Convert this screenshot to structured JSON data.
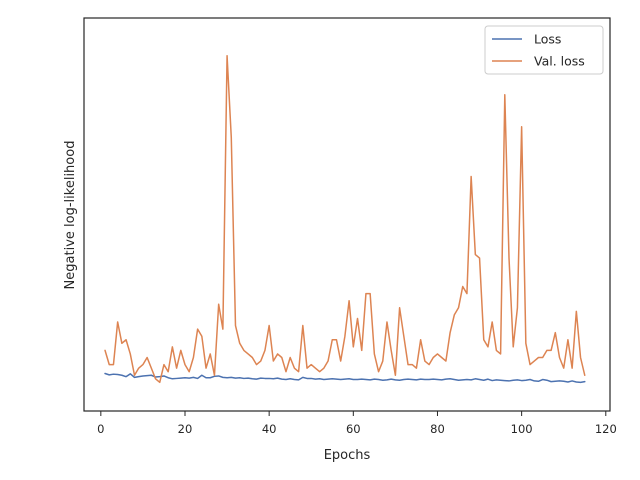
{
  "chart_data": {
    "type": "line",
    "title": "",
    "xlabel": "Epochs",
    "ylabel": "Negative log-likelihood",
    "xlim": [
      -4,
      121
    ],
    "ylim": [
      0,
      100
    ],
    "x_ticks": [
      0,
      20,
      40,
      60,
      80,
      100,
      120
    ],
    "x_tick_labels": [
      "0",
      "20",
      "40",
      "60",
      "80",
      "100",
      "120"
    ],
    "y_tick_labels_visible": false,
    "grid": false,
    "legend": "top-right",
    "series": [
      {
        "name": "Loss",
        "color": "#4c72b0",
        "x": [
          1,
          2,
          3,
          4,
          5,
          6,
          7,
          8,
          9,
          10,
          11,
          12,
          13,
          14,
          15,
          16,
          17,
          18,
          19,
          20,
          21,
          22,
          23,
          24,
          25,
          26,
          27,
          28,
          29,
          30,
          31,
          32,
          33,
          34,
          35,
          36,
          37,
          38,
          39,
          40,
          41,
          42,
          43,
          44,
          45,
          46,
          47,
          48,
          49,
          50,
          51,
          52,
          53,
          54,
          55,
          56,
          57,
          58,
          59,
          60,
          61,
          62,
          63,
          64,
          65,
          66,
          67,
          68,
          69,
          70,
          71,
          72,
          73,
          74,
          75,
          76,
          77,
          78,
          79,
          80,
          81,
          82,
          83,
          84,
          85,
          86,
          87,
          88,
          89,
          90,
          91,
          92,
          93,
          94,
          95,
          96,
          97,
          98,
          99,
          100,
          101,
          102,
          103,
          104,
          105,
          106,
          107,
          108,
          109,
          110,
          111,
          112,
          113,
          114,
          115
        ],
        "values": [
          5.5,
          5.1,
          5.3,
          5.2,
          5.0,
          4.6,
          5.4,
          4.4,
          4.6,
          4.8,
          4.9,
          5.0,
          4.5,
          4.6,
          4.8,
          4.3,
          4.0,
          4.1,
          4.2,
          4.3,
          4.2,
          4.4,
          4.1,
          5.0,
          4.3,
          4.3,
          4.7,
          4.8,
          4.4,
          4.3,
          4.4,
          4.2,
          4.3,
          4.1,
          4.2,
          4.0,
          3.9,
          4.2,
          4.1,
          4.1,
          4.0,
          4.2,
          3.9,
          3.8,
          4.0,
          3.8,
          3.7,
          4.4,
          4.1,
          4.1,
          3.9,
          4.0,
          3.8,
          3.9,
          4.0,
          3.9,
          3.8,
          3.9,
          4.0,
          3.8,
          3.8,
          3.9,
          3.8,
          3.7,
          3.9,
          3.8,
          3.6,
          3.7,
          3.9,
          3.7,
          3.6,
          3.8,
          3.9,
          3.8,
          3.7,
          3.9,
          3.8,
          3.8,
          3.9,
          3.8,
          3.7,
          3.9,
          4.0,
          3.8,
          3.6,
          3.7,
          3.8,
          3.7,
          4.0,
          3.8,
          3.6,
          3.9,
          3.5,
          3.7,
          3.6,
          3.5,
          3.4,
          3.6,
          3.7,
          3.5,
          3.6,
          3.8,
          3.4,
          3.3,
          3.8,
          3.6,
          3.2,
          3.3,
          3.4,
          3.3,
          3.1,
          3.4,
          3.1,
          3.0,
          3.2
        ]
      },
      {
        "name": "Val. loss",
        "color": "#dd8452",
        "x": [
          1,
          2,
          3,
          4,
          5,
          6,
          7,
          8,
          9,
          10,
          11,
          12,
          13,
          14,
          15,
          16,
          17,
          18,
          19,
          20,
          21,
          22,
          23,
          24,
          25,
          26,
          27,
          28,
          29,
          30,
          31,
          32,
          33,
          34,
          35,
          36,
          37,
          38,
          39,
          40,
          41,
          42,
          43,
          44,
          45,
          46,
          47,
          48,
          49,
          50,
          51,
          52,
          53,
          54,
          55,
          56,
          57,
          58,
          59,
          60,
          61,
          62,
          63,
          64,
          65,
          66,
          67,
          68,
          69,
          70,
          71,
          72,
          73,
          74,
          75,
          76,
          77,
          78,
          79,
          80,
          81,
          82,
          83,
          84,
          85,
          86,
          87,
          88,
          89,
          90,
          91,
          92,
          93,
          94,
          95,
          96,
          97,
          98,
          99,
          100,
          101,
          102,
          103,
          104,
          105,
          106,
          107,
          108,
          109,
          110,
          111,
          112,
          113,
          114,
          115
        ],
        "values": [
          12,
          8,
          8,
          20,
          14,
          15,
          11,
          5,
          7,
          8,
          10,
          7,
          4,
          3,
          8,
          6,
          13,
          7,
          12,
          8,
          6,
          10,
          18,
          16,
          7,
          11,
          5,
          25,
          18,
          95,
          72,
          19,
          14,
          12,
          11,
          10,
          8,
          9,
          12,
          19,
          9,
          11,
          10,
          6,
          10,
          7,
          6,
          19,
          7,
          8,
          7,
          6,
          7,
          9,
          15,
          15,
          9,
          16,
          26,
          13,
          21,
          12,
          28,
          28,
          11,
          6,
          9,
          20,
          12,
          5,
          24,
          16,
          8,
          8,
          7,
          15,
          9,
          8,
          10,
          11,
          10,
          9,
          17,
          22,
          24,
          30,
          28,
          61,
          39,
          38,
          15,
          13,
          20,
          12,
          11,
          84,
          38,
          13,
          24,
          75,
          14,
          8,
          9,
          10,
          10,
          12,
          12,
          17,
          10,
          7,
          15,
          7,
          23,
          10,
          5
        ]
      }
    ]
  }
}
